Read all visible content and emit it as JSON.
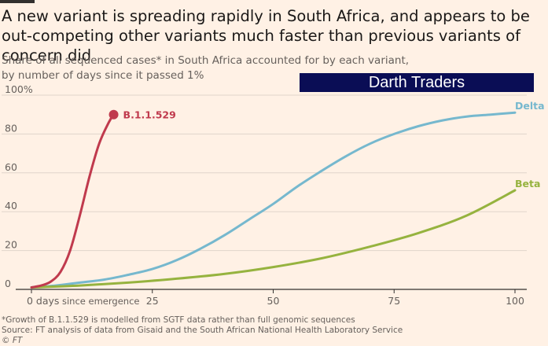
{
  "header": {
    "title": "A new variant is spreading rapidly in South Africa, and appears to be out-competing other variants much faster than previous variants of concern did",
    "subtitle_line1": "Share of all sequenced cases* in South Africa accounted for by each variant,",
    "subtitle_line2": "by number of days since it passed 1%"
  },
  "watermark": {
    "text": "Darth Traders"
  },
  "footer": {
    "note": "*Growth of B.1.1.529 is modelled from SGTF data rather than full genomic sequences",
    "source": "Source: FT analysis of data from Gisaid and the South African National Health Laboratory Service",
    "credit": "© FT"
  },
  "chart_data": {
    "type": "line",
    "xlabel": "since emergence",
    "ylabel": "",
    "xlim": [
      0,
      100
    ],
    "ylim": [
      0,
      100
    ],
    "x_ticks": [
      0,
      25,
      50,
      75,
      100
    ],
    "x_tick_labels": [
      "0 days",
      "25",
      "50",
      "75",
      "100"
    ],
    "y_ticks": [
      0,
      20,
      40,
      60,
      80,
      100
    ],
    "y_tick_labels": [
      "0",
      "20",
      "40",
      "60",
      "80",
      "100%"
    ],
    "grid": true,
    "series": [
      {
        "name": "Delta",
        "color": "#76b8ce",
        "x": [
          0,
          5,
          10,
          15,
          20,
          25,
          30,
          35,
          40,
          45,
          50,
          55,
          60,
          65,
          70,
          75,
          80,
          85,
          90,
          95,
          100
        ],
        "y": [
          1,
          2,
          3.5,
          5,
          7.5,
          10.5,
          15,
          21,
          28,
          36,
          44,
          53,
          61,
          68.5,
          75,
          80,
          84,
          87,
          89,
          90,
          91
        ]
      },
      {
        "name": "Beta",
        "color": "#96b33f",
        "x": [
          0,
          10,
          20,
          30,
          40,
          50,
          60,
          70,
          80,
          90,
          100
        ],
        "y": [
          1,
          2,
          3.5,
          5.5,
          8,
          11.5,
          16,
          22,
          29,
          38,
          51
        ]
      },
      {
        "name": "B.1.1.529",
        "color": "#c03a4d",
        "end_marker": true,
        "x": [
          0,
          2,
          4,
          6,
          8,
          10,
          12,
          14,
          16,
          17
        ],
        "y": [
          1,
          2,
          4,
          9,
          20,
          38,
          58,
          75,
          86,
          90
        ]
      }
    ]
  }
}
